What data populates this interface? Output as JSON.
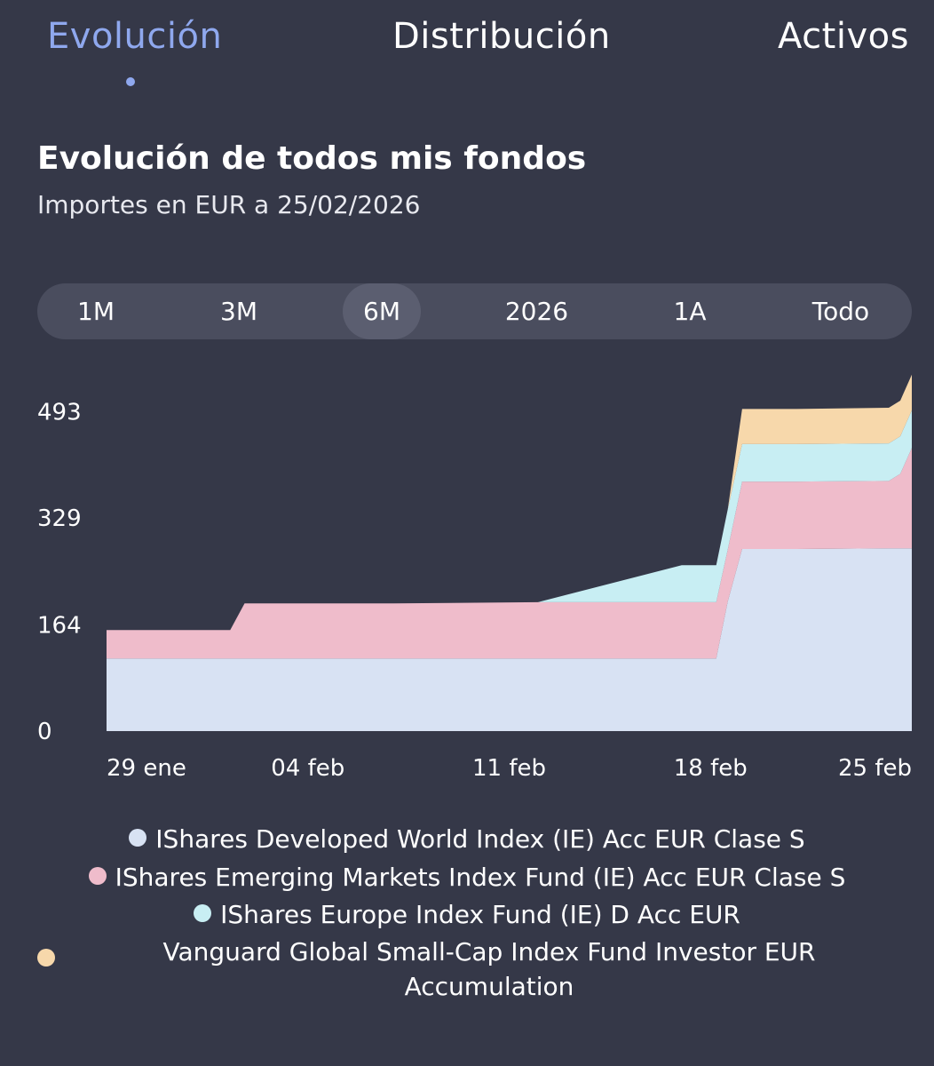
{
  "tabs": [
    {
      "label": "Evolución",
      "active": true
    },
    {
      "label": "Distribución",
      "active": false
    },
    {
      "label": "Activos",
      "active": false
    }
  ],
  "header": {
    "title": "Evolución de todos mis fondos",
    "subtitle": "Importes en EUR a 25/02/2026"
  },
  "periods": [
    "1M",
    "3M",
    "6M",
    "2026",
    "1A",
    "Todo"
  ],
  "selected_period": "6M",
  "colors": {
    "accent": "#8fa8ee",
    "background": "#353848",
    "series1": "#d8e2f3",
    "series2": "#efbccb",
    "series3": "#c8eef3",
    "series4": "#f7d8ab"
  },
  "chart_data": {
    "type": "area",
    "stacked": true,
    "title": "Evolución de todos mis fondos",
    "ylabel": "EUR",
    "ylim": [
      0,
      525
    ],
    "yticks": [
      "493",
      "329",
      "164",
      "0"
    ],
    "ytick_values": [
      493,
      329,
      164,
      0
    ],
    "xticks": [
      "29 ene",
      "04 feb",
      "11 feb",
      "18 feb",
      "25 feb"
    ],
    "xtick_days": [
      0,
      7,
      14,
      21,
      28
    ],
    "x": [
      0,
      4.3,
      4.8,
      6,
      10,
      15,
      20,
      21.2,
      21.6,
      22.1,
      24,
      27.2,
      27.6,
      28
    ],
    "series": [
      {
        "name": "IShares Developed World Index (IE) Acc EUR Clase S",
        "color": "#d8e2f3",
        "values": [
          112,
          112,
          112,
          112,
          112,
          112,
          112,
          112,
          200,
          281,
          281,
          282,
          282,
          282
        ]
      },
      {
        "name": "IShares Emerging Markets Index Fund (IE) Acc EUR Clase S",
        "color": "#efbccb",
        "values": [
          44,
          44,
          85,
          85,
          85,
          87,
          87,
          87,
          80,
          104,
          104,
          104,
          115,
          155
        ]
      },
      {
        "name": "IShares Europe Index Fund (IE) D Acc EUR",
        "color": "#c8eef3",
        "values": [
          0,
          0,
          0,
          0,
          0,
          0,
          57,
          57,
          62,
          58,
          58,
          58,
          58,
          58
        ]
      },
      {
        "name": "Vanguard Global Small-Cap Index Fund Investor EUR Accumulation",
        "color": "#f7d8ab",
        "values": [
          0,
          0,
          0,
          0,
          0,
          0,
          0,
          0,
          0,
          54,
          54,
          55,
          55,
          55
        ]
      }
    ]
  },
  "legend": [
    {
      "label": "IShares Developed World Index (IE) Acc EUR Clase S",
      "color": "#d8e2f3"
    },
    {
      "label": "IShares Emerging Markets Index Fund (IE) Acc EUR Clase S",
      "color": "#efbccb"
    },
    {
      "label": "IShares Europe Index Fund (IE) D Acc EUR",
      "color": "#c8eef3"
    },
    {
      "label_line1": "Vanguard Global Small-Cap Index Fund Investor EUR",
      "label_line2": "Accumulation",
      "color": "#f7d8ab"
    }
  ]
}
